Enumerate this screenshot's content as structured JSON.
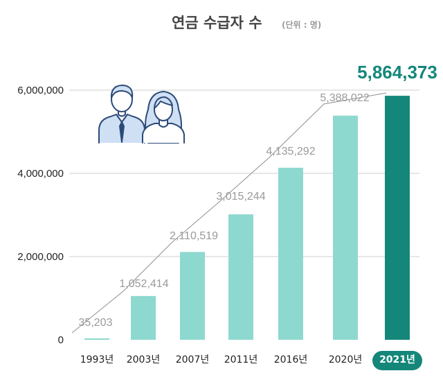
{
  "chart_data": {
    "type": "bar",
    "title": "연금 수급자 수",
    "unit_note": "(단위 : 명)",
    "categories": [
      "1993년",
      "2003년",
      "2007년",
      "2011년",
      "2016년",
      "2020년",
      "2021년"
    ],
    "values": [
      35203,
      1052414,
      2110519,
      3015244,
      4135292,
      5388022,
      5864373
    ],
    "value_labels": [
      "35,203",
      "1,052,414",
      "2,110,519",
      "3,015,244",
      "4,135,292",
      "5,388,022",
      "5,864,373"
    ],
    "y_ticks": [
      0,
      2000000,
      4000000,
      6000000
    ],
    "y_tick_labels": [
      "0",
      "2,000,000",
      "4,000,000",
      "6,000,000"
    ],
    "ylim": [
      0,
      6000000
    ],
    "grid": true,
    "highlight_index": 6,
    "colors": {
      "bar": "#8ed9cf",
      "highlight_bar": "#14877a",
      "highlight_label": "#14877a",
      "highlight_pill": "#14877a",
      "data_label": "#9a9a9a",
      "icon_stroke": "#2c4a78",
      "icon_fill": "#cfe0f5"
    },
    "icon": "people-icon"
  }
}
